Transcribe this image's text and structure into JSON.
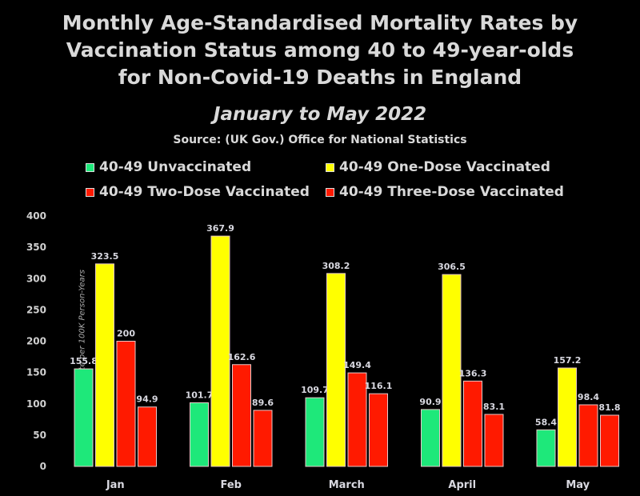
{
  "chart_data": {
    "type": "bar",
    "title": "Monthly Age-Standardised Mortality Rates by Vaccination Status among 40 to 49-year-olds for Non-Covid-19 Deaths in England",
    "title_lines": [
      "Monthly Age-Standardised Mortality Rates by",
      "Vaccination Status among 40 to 49-year-olds",
      "for Non-Covid-19 Deaths in England"
    ],
    "subtitle": "January to May 2022",
    "source": "Source: (UK Gov.) Office for National Statistics",
    "xlabel": "",
    "ylabel": "Mortality Rate per 100K Person-Years",
    "ylim": [
      0,
      400
    ],
    "yticks": [
      0,
      50,
      100,
      150,
      200,
      250,
      300,
      350,
      400
    ],
    "grid": false,
    "legend_position": "top",
    "categories": [
      "Jan",
      "Feb",
      "March",
      "April",
      "May"
    ],
    "series": [
      {
        "name": "40-49 Unvaccinated",
        "color": "#1ee87a",
        "values": [
          155.8,
          101.7,
          109.7,
          90.9,
          58.4
        ]
      },
      {
        "name": "40-49 One-Dose Vaccinated",
        "color": "#ffff00",
        "values": [
          323.5,
          367.9,
          308.2,
          306.5,
          157.2
        ]
      },
      {
        "name": "40-49 Two-Dose Vaccinated",
        "color": "#ff1a00",
        "values": [
          200,
          162.6,
          149.4,
          136.3,
          98.4
        ]
      },
      {
        "name": "40-49 Three-Dose Vaccinated",
        "color": "#ff1a00",
        "values": [
          94.9,
          89.6,
          116.1,
          83.1,
          81.8
        ]
      }
    ],
    "data_labels": [
      [
        "155.8",
        "101.7",
        "109.7",
        "90.9",
        "58.4"
      ],
      [
        "323.5",
        "367.9",
        "308.2",
        "306.5",
        "157.2"
      ],
      [
        "200",
        "162.6",
        "149.4",
        "136.3",
        "98.4"
      ],
      [
        "94.9",
        "89.6",
        "116.1",
        "83.1",
        "81.8"
      ]
    ]
  }
}
